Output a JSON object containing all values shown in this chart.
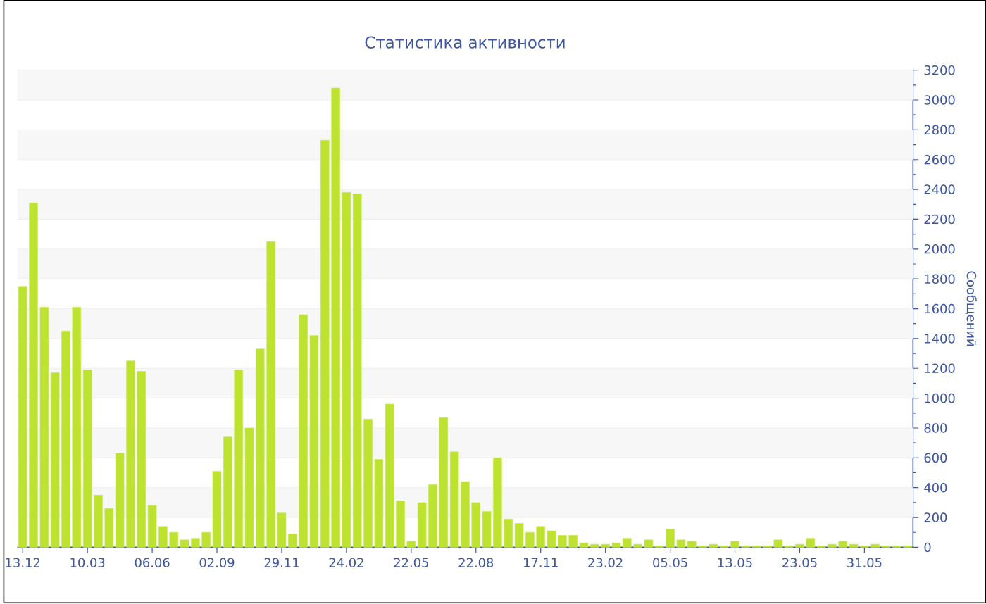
{
  "chart_data": {
    "type": "bar",
    "title": "Статистика активности",
    "ylabel": "Сообщений",
    "categories": [
      "13.12",
      null,
      null,
      null,
      null,
      null,
      "10.03",
      null,
      null,
      null,
      null,
      null,
      "06.06",
      null,
      null,
      null,
      null,
      null,
      "02.09",
      null,
      null,
      null,
      null,
      null,
      "29.11",
      null,
      null,
      null,
      null,
      null,
      "24.02",
      null,
      null,
      null,
      null,
      null,
      "22.05",
      null,
      null,
      null,
      null,
      null,
      "22.08",
      null,
      null,
      null,
      null,
      null,
      "17.11",
      null,
      null,
      null,
      null,
      null,
      "23.02",
      null,
      null,
      null,
      null,
      null,
      "05.05",
      null,
      null,
      null,
      null,
      null,
      "13.05",
      null,
      null,
      null,
      null,
      null,
      "23.05",
      null,
      null,
      null,
      null,
      null,
      "31.05",
      null,
      null,
      null,
      null
    ],
    "values": [
      1750,
      2310,
      1610,
      1170,
      1450,
      1610,
      1190,
      350,
      260,
      630,
      1250,
      1180,
      280,
      140,
      100,
      50,
      60,
      100,
      510,
      740,
      1190,
      800,
      1330,
      2050,
      230,
      90,
      1560,
      1420,
      2730,
      3080,
      2380,
      2370,
      860,
      590,
      960,
      310,
      40,
      300,
      420,
      870,
      640,
      440,
      300,
      240,
      600,
      190,
      160,
      100,
      140,
      110,
      80,
      80,
      30,
      20,
      20,
      30,
      60,
      20,
      50,
      10,
      120,
      50,
      40,
      10,
      20,
      10,
      40,
      10,
      10,
      10,
      50,
      10,
      20,
      60,
      10,
      20,
      40,
      20,
      10,
      20,
      10,
      10,
      10
    ],
    "color": "#bde22f",
    "ylim": [
      0,
      3200
    ],
    "yticks": [
      0,
      200,
      400,
      600,
      800,
      1000,
      1200,
      1400,
      1600,
      1800,
      2000,
      2200,
      2400,
      2600,
      2800,
      3000,
      3200
    ],
    "grid": "y"
  }
}
